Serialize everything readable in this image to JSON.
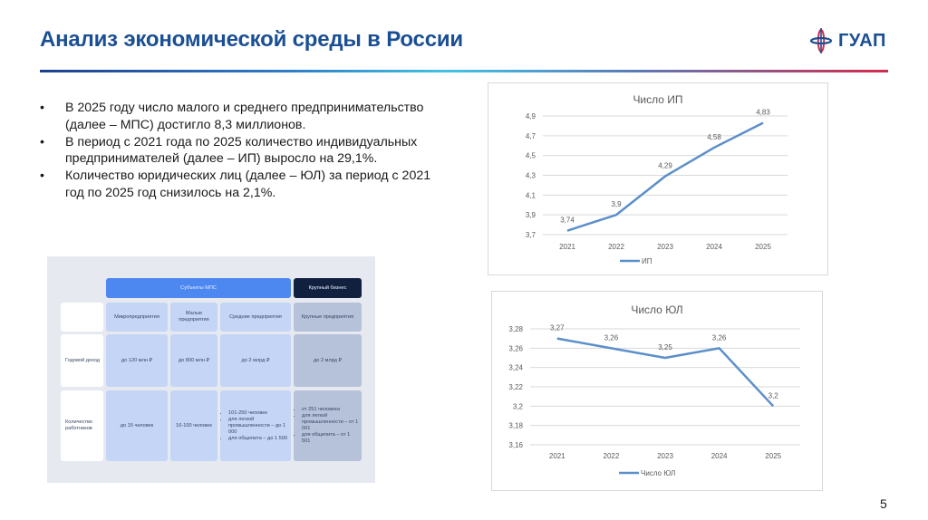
{
  "slide": {
    "title": "Анализ экономической среды в России",
    "logo_text": "ГУАП",
    "page_number": "5",
    "colors": {
      "title": "#1b4f93",
      "series": "#5b8fc9",
      "rule_start": "#1c3f8f",
      "rule_mid": "#43c2e6",
      "rule_end": "#d32b4b"
    }
  },
  "bullets": [
    {
      "marker": "•",
      "text": "В 2025 году число малого и среднего предпринимательство (далее – МПС) достигло 8,3 миллионов."
    },
    {
      "marker": "•",
      "text": "В период с 2021 года по 2025 количество индивидуальных предпринимателей (далее – ИП) выросло на 29,1%."
    },
    {
      "marker": "•",
      "text": "Количество юридических лиц (далее – ЮЛ) за период с 2021 год по 2025 год снизилось на 2,1%."
    }
  ],
  "table": {
    "group_headers": {
      "sme": "Субъекты МПС",
      "large": "Крупный бизнес"
    },
    "columns": [
      "Микропредприятия",
      "Малые предприятия",
      "Средние предприятия",
      "Крупные предприятия"
    ],
    "rows": [
      {
        "label": "Годовой доход",
        "values": [
          "до 120 млн ₽",
          "до 800 млн ₽",
          "до 2 млрд ₽",
          "до 2 млрд ₽"
        ]
      },
      {
        "label": "Количество работников",
        "values": [
          "до 15 человек",
          "16-100 человек"
        ],
        "medium_list": [
          "101-250 человек",
          "для легкой промышленности – до 1 000",
          "для общепита – до 1 500"
        ],
        "large_list": [
          "от 251 человека",
          "для легкой промышленности – от 1 001",
          "для общепита – от 1 501"
        ]
      }
    ]
  },
  "chart_data": [
    {
      "type": "line",
      "title": "Число ИП",
      "categories": [
        "2021",
        "2022",
        "2023",
        "2024",
        "2025"
      ],
      "series": [
        {
          "name": "ИП",
          "values": [
            3.74,
            3.9,
            4.29,
            4.58,
            4.83
          ],
          "labels": [
            "3,74",
            "3,9",
            "4,29",
            "4,58",
            "4,83"
          ]
        }
      ],
      "yticks": [
        "3,7",
        "3,9",
        "4,1",
        "4,3",
        "4,5",
        "4,7",
        "4,9"
      ],
      "ylim": [
        3.7,
        4.9
      ],
      "xlabel": "",
      "ylabel": "",
      "grid": true,
      "legend_position": "bottom"
    },
    {
      "type": "line",
      "title": "Число ЮЛ",
      "categories": [
        "2021",
        "2022",
        "2023",
        "2024",
        "2025"
      ],
      "series": [
        {
          "name": "Число ЮЛ",
          "values": [
            3.27,
            3.26,
            3.25,
            3.26,
            3.2
          ],
          "labels": [
            "3,27",
            "3,26",
            "3,25",
            "3,26",
            "3,2"
          ]
        }
      ],
      "yticks": [
        "3,16",
        "3,18",
        "3,2",
        "3,22",
        "3,24",
        "3,26",
        "3,28"
      ],
      "ylim": [
        3.16,
        3.28
      ],
      "xlabel": "",
      "ylabel": "",
      "grid": true,
      "legend_position": "bottom"
    }
  ]
}
